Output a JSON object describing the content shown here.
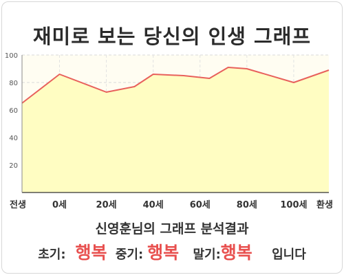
{
  "title": "재미로 보는 당신의 인생 그래프",
  "summary": {
    "heading": "신영훈님의 그래프 분석결과",
    "early_label": "초기:",
    "early_value": "행복",
    "middle_label": "중기:",
    "middle_value": "행복",
    "late_label": "말기:",
    "late_value": "행복",
    "ending": "입니다"
  },
  "colors": {
    "line": "#e8605c",
    "fill": "#fffdc2",
    "plot_bg": "#fffdf2",
    "emphasis": "#e8504f"
  },
  "chart_data": {
    "type": "area",
    "title": "재미로 보는 당신의 인생 그래프",
    "categories": [
      "전생",
      "0세",
      "20세",
      "40세",
      "60세",
      "80세",
      "100세",
      "환생"
    ],
    "x": [
      -16,
      0,
      20,
      32,
      40,
      53,
      64,
      72,
      80,
      100,
      115
    ],
    "values": [
      65,
      86,
      73,
      77,
      86,
      85,
      83,
      91,
      90,
      80,
      89
    ],
    "ylim": [
      0,
      100
    ],
    "yticks": [
      20,
      40,
      60,
      80,
      100
    ],
    "xlim": [
      -16,
      115
    ],
    "grid": true,
    "legend": "none"
  }
}
